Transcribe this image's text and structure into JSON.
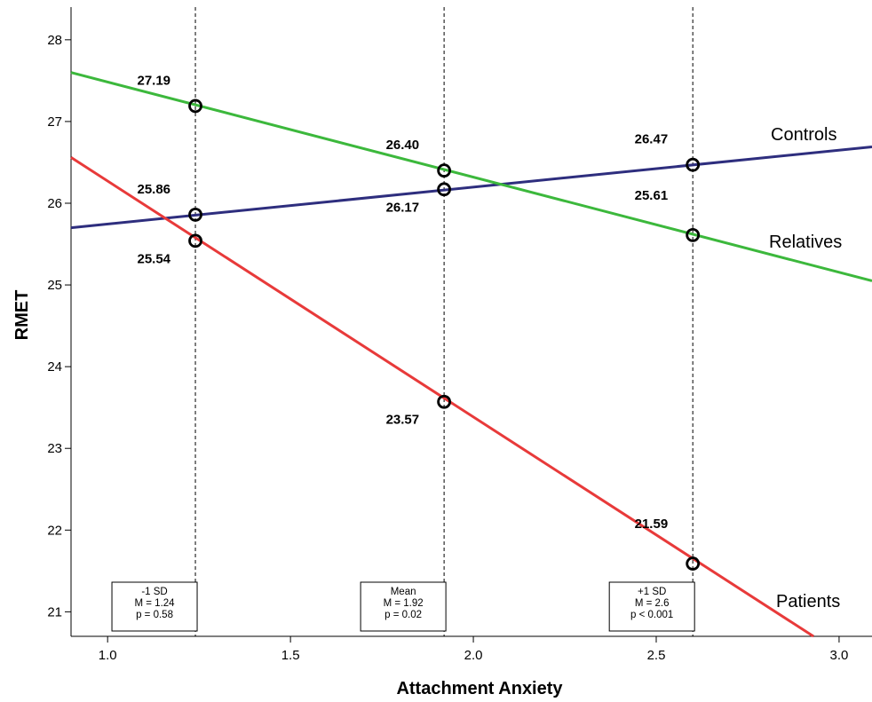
{
  "chart_data": {
    "type": "line",
    "title": "",
    "xlabel": "Attachment Anxiety",
    "ylabel": "RMET",
    "xlim": [
      0.9,
      3.09
    ],
    "ylim": [
      20.7,
      28.4
    ],
    "x_ticks": [
      "1.0",
      "1.5",
      "2.0",
      "2.5",
      "3.0"
    ],
    "y_ticks": [
      "21",
      "22",
      "23",
      "24",
      "25",
      "26",
      "27",
      "28"
    ],
    "grid": false,
    "legend": "direct labels at right end of lines",
    "series": [
      {
        "name": "Controls",
        "color": "#2e2e7e",
        "line_x": [
          0.9,
          3.09
        ],
        "line_y": [
          25.7,
          26.69
        ],
        "points": [
          {
            "x": 1.24,
            "y": 25.86,
            "label": "25.86",
            "label_pos": "above-left"
          },
          {
            "x": 1.92,
            "y": 26.17,
            "label": "26.17",
            "label_pos": "below-left"
          },
          {
            "x": 2.6,
            "y": 26.47,
            "label": "26.47",
            "label_pos": "above-left"
          }
        ]
      },
      {
        "name": "Relatives",
        "color": "#3cb83c",
        "line_x": [
          0.9,
          3.09
        ],
        "line_y": [
          27.6,
          25.05
        ],
        "points": [
          {
            "x": 1.24,
            "y": 27.19,
            "label": "27.19",
            "label_pos": "above-left"
          },
          {
            "x": 1.92,
            "y": 26.4,
            "label": "26.40",
            "label_pos": "above-left"
          },
          {
            "x": 2.6,
            "y": 25.61,
            "label": "25.61",
            "label_pos": "above-left-far"
          }
        ]
      },
      {
        "name": "Patients",
        "color": "#e83a3a",
        "line_x": [
          0.9,
          2.93
        ],
        "line_y": [
          26.56,
          20.7
        ],
        "points": [
          {
            "x": 1.24,
            "y": 25.54,
            "label": "25.54",
            "label_pos": "below-left"
          },
          {
            "x": 1.92,
            "y": 23.57,
            "label": "23.57",
            "label_pos": "below-left"
          },
          {
            "x": 2.6,
            "y": 21.59,
            "label": "21.59",
            "label_pos": "above-left-far"
          }
        ]
      }
    ],
    "reference_lines": [
      {
        "x": 1.24,
        "lines": [
          "-1 SD",
          "M = 1.24",
          "p = 0.58"
        ]
      },
      {
        "x": 1.92,
        "lines": [
          "Mean",
          "M = 1.92",
          "p = 0.02"
        ]
      },
      {
        "x": 2.6,
        "lines": [
          "+1 SD",
          "M = 2.6",
          "p < 0.001"
        ]
      }
    ]
  }
}
